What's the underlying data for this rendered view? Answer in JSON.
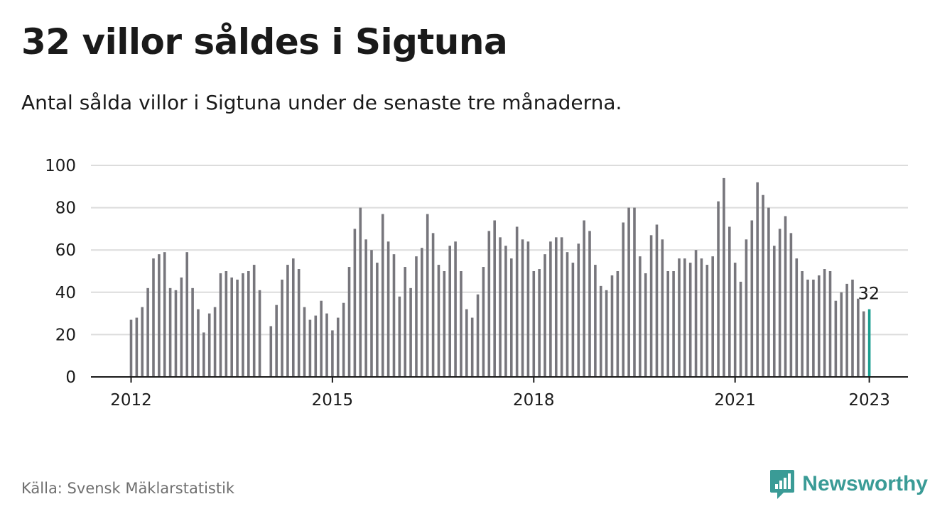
{
  "page": {
    "title": "32 villor såldes i Sigtuna",
    "subtitle": "Antal sålda villor i Sigtuna under de senaste tre månaderna.",
    "source": "Källa: Svensk Mäklarstatistik",
    "brand": "Newsworthy"
  },
  "colors": {
    "bar": "#77767c",
    "highlight": "#1a9e8f",
    "grid": "#dcdcdc",
    "axis": "#1a1a1a",
    "brand": "#3a9b96"
  },
  "chart_data": {
    "type": "bar",
    "x_start": "2012-01",
    "interval": "month",
    "values": [
      27,
      28,
      33,
      42,
      56,
      58,
      59,
      42,
      41,
      47,
      59,
      42,
      32,
      21,
      30,
      33,
      49,
      50,
      47,
      46,
      49,
      50,
      53,
      41,
      null,
      24,
      34,
      46,
      53,
      56,
      51,
      33,
      27,
      29,
      36,
      30,
      22,
      28,
      35,
      52,
      70,
      80,
      65,
      60,
      54,
      77,
      64,
      58,
      38,
      52,
      42,
      57,
      61,
      77,
      68,
      53,
      50,
      62,
      64,
      50,
      32,
      28,
      39,
      52,
      69,
      74,
      66,
      62,
      56,
      71,
      65,
      64,
      50,
      51,
      58,
      64,
      66,
      66,
      59,
      54,
      63,
      74,
      69,
      53,
      43,
      41,
      48,
      50,
      73,
      80,
      80,
      57,
      49,
      67,
      72,
      65,
      50,
      50,
      56,
      56,
      54,
      60,
      56,
      53,
      57,
      83,
      94,
      71,
      54,
      45,
      65,
      74,
      92,
      86,
      80,
      62,
      70,
      76,
      68,
      56,
      50,
      46,
      46,
      48,
      51,
      50,
      36,
      40,
      44,
      46,
      37,
      31,
      32
    ],
    "xticks": [
      "2012",
      "2015",
      "2018",
      "2021",
      "2023"
    ],
    "ylim": [
      0,
      100
    ],
    "yticks": [
      0,
      20,
      40,
      60,
      80,
      100
    ],
    "highlight_label": "32",
    "grid": true
  }
}
